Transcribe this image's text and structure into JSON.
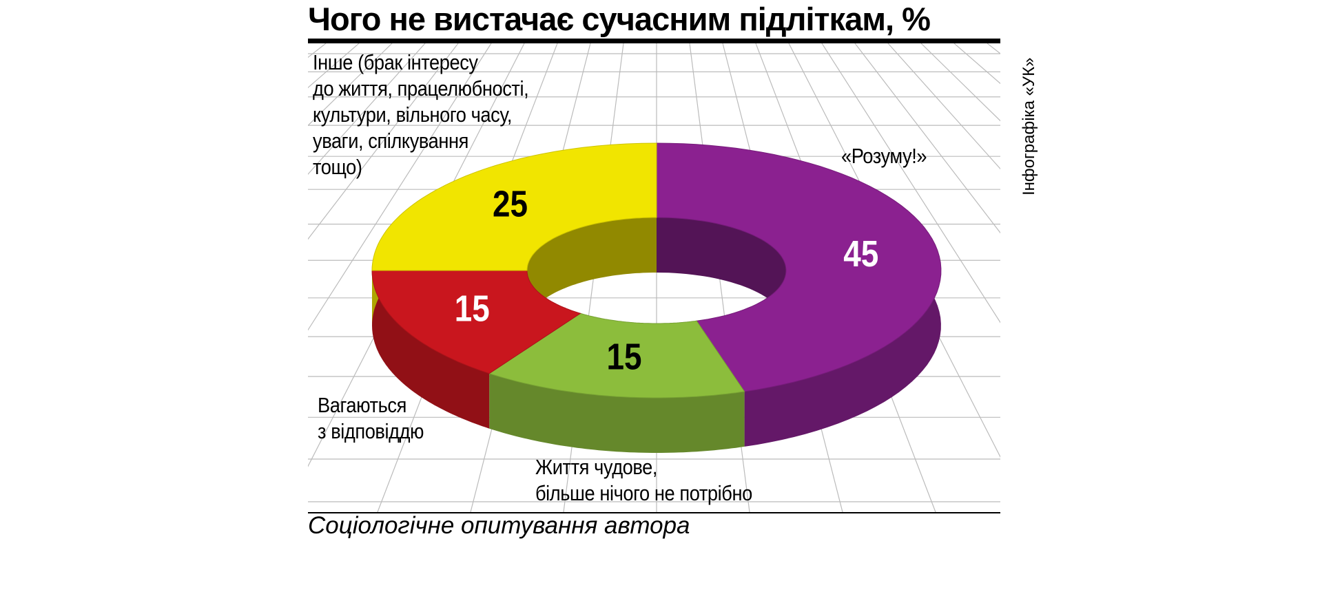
{
  "chart_data": {
    "type": "pie",
    "donut": true,
    "title": "Чого не вистачає сучасним підліткам, %",
    "categories": [
      "«Розуму!»",
      "Життя чудове,\nбільше нічого не потрібно",
      "Вагаються\nз відповіддю",
      "Інше (брак інтересу\nдо життя, працелюбності,\nкультури, вільного часу,\nуваги, спілкування\nтощо)"
    ],
    "values": [
      45,
      15,
      15,
      25
    ],
    "colors": [
      "#8b2190",
      "#8cbd3c",
      "#c9161e",
      "#f1e500"
    ],
    "source": "Соціологічне опитування автора",
    "credit": "Інфографіка «УК»"
  }
}
